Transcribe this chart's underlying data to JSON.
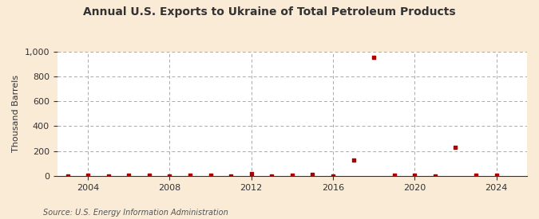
{
  "title": "Annual U.S. Exports to Ukraine of Total Petroleum Products",
  "ylabel": "Thousand Barrels",
  "source": "Source: U.S. Energy Information Administration",
  "background_color": "#faebd7",
  "plot_background_color": "#ffffff",
  "marker_color": "#aa0000",
  "grid_color": "#aaaaaa",
  "years": [
    2003,
    2004,
    2005,
    2006,
    2007,
    2008,
    2009,
    2010,
    2011,
    2012,
    2013,
    2014,
    2015,
    2016,
    2017,
    2018,
    2019,
    2020,
    2021,
    2022,
    2023,
    2024
  ],
  "values": [
    3,
    5,
    3,
    8,
    5,
    3,
    8,
    5,
    3,
    20,
    3,
    5,
    10,
    3,
    130,
    950,
    5,
    8,
    3,
    230,
    5,
    5
  ],
  "ylim": [
    0,
    1000
  ],
  "yticks": [
    0,
    200,
    400,
    600,
    800,
    1000
  ],
  "xticks": [
    2004,
    2008,
    2012,
    2016,
    2020,
    2024
  ],
  "xlim": [
    2002.5,
    2025.5
  ]
}
